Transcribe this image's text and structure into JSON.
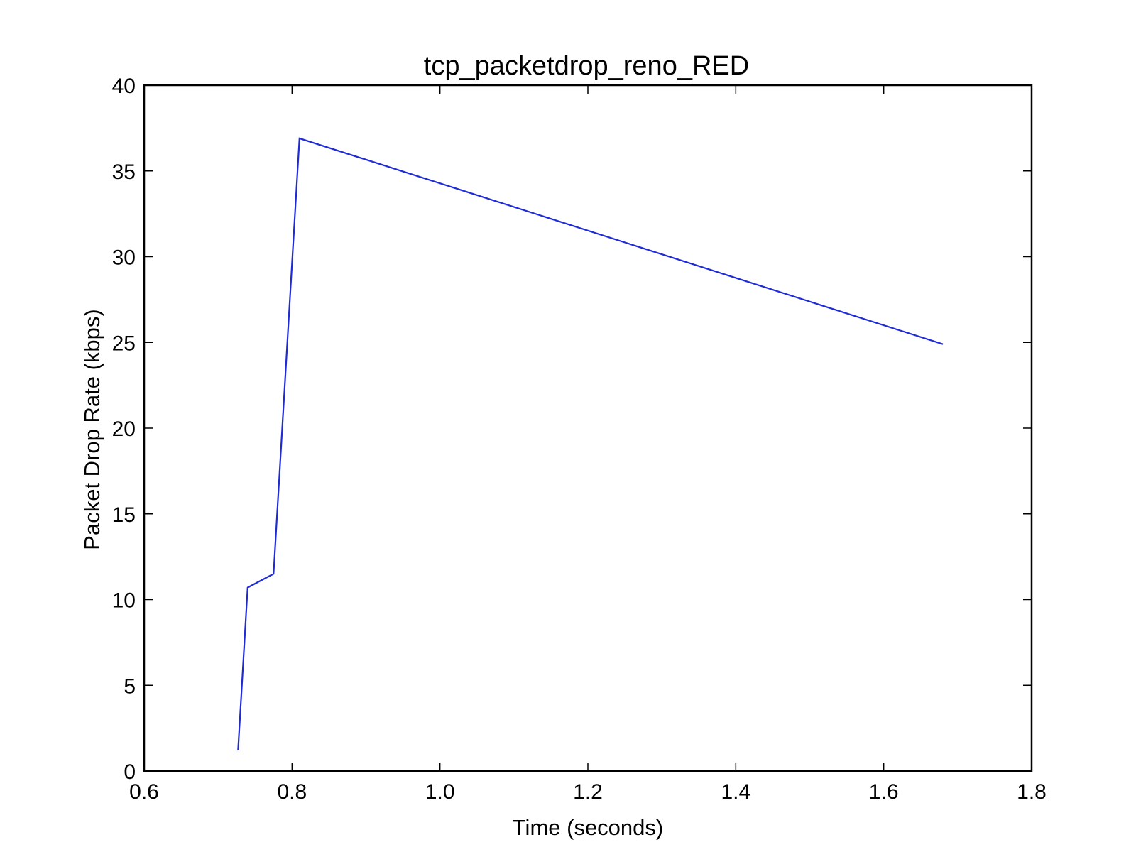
{
  "chart_data": {
    "type": "line",
    "title": "tcp_packetdrop_reno_RED",
    "xlabel": "Time (seconds)",
    "ylabel": "Packet Drop Rate (kbps)",
    "xlim": [
      0.6,
      1.8
    ],
    "ylim": [
      0,
      40
    ],
    "x_ticks": [
      0.6,
      0.8,
      1.0,
      1.2,
      1.4,
      1.6,
      1.8
    ],
    "x_tick_labels": [
      "0.6",
      "0.8",
      "1.0",
      "1.2",
      "1.4",
      "1.6",
      "1.8"
    ],
    "y_ticks": [
      0,
      5,
      10,
      15,
      20,
      25,
      30,
      35,
      40
    ],
    "y_tick_labels": [
      "0",
      "5",
      "10",
      "15",
      "20",
      "25",
      "30",
      "35",
      "40"
    ],
    "grid": false,
    "series": [
      {
        "color": "#1f2bd6",
        "x": [
          0.727,
          0.74,
          0.775,
          0.81,
          1.68
        ],
        "y": [
          1.2,
          10.7,
          11.5,
          36.9,
          24.9
        ]
      }
    ]
  }
}
